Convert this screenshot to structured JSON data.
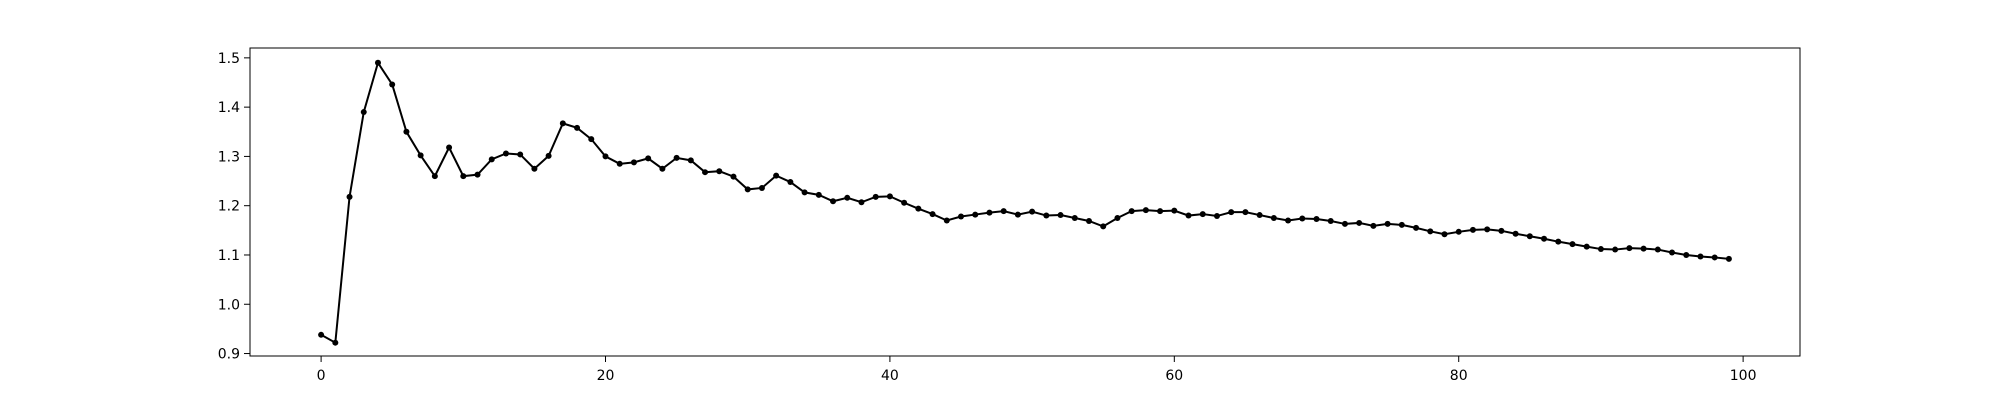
{
  "chart_data": {
    "type": "line",
    "title": "",
    "xlabel": "",
    "ylabel": "",
    "xlim": [
      -5,
      104
    ],
    "ylim": [
      0.895,
      1.52
    ],
    "xticks": [
      0,
      20,
      40,
      60,
      80,
      100
    ],
    "yticks": [
      0.9,
      1.0,
      1.1,
      1.2,
      1.3,
      1.4,
      1.5
    ],
    "xtick_labels": [
      "0",
      "20",
      "40",
      "60",
      "80",
      "100"
    ],
    "ytick_labels": [
      "0.9",
      "1.0",
      "1.1",
      "1.2",
      "1.3",
      "1.4",
      "1.5"
    ],
    "grid": false,
    "legend": "none",
    "colors": {
      "line": "#000000",
      "axes": "#000000",
      "background": "#ffffff"
    },
    "series": [
      {
        "x": [
          0,
          1,
          2,
          3,
          4,
          5,
          6,
          7,
          8,
          9,
          10,
          11,
          12,
          13,
          14,
          15,
          16,
          17,
          18,
          19,
          20,
          21,
          22,
          23,
          24,
          25,
          26,
          27,
          28,
          29,
          30,
          31,
          32,
          33,
          34,
          35,
          36,
          37,
          38,
          39,
          40,
          41,
          42,
          43,
          44,
          45,
          46,
          47,
          48,
          49,
          50,
          51,
          52,
          53,
          54,
          55,
          56,
          57,
          58,
          59,
          60,
          61,
          62,
          63,
          64,
          65,
          66,
          67,
          68,
          69,
          70,
          71,
          72,
          73,
          74,
          75,
          76,
          77,
          78,
          79,
          80,
          81,
          82,
          83,
          84,
          85,
          86,
          87,
          88,
          89,
          90,
          91,
          92,
          93,
          94,
          95,
          96,
          97,
          98,
          99
        ],
        "values": [
          0.938,
          0.922,
          1.218,
          1.39,
          1.49,
          1.446,
          1.35,
          1.302,
          1.26,
          1.318,
          1.26,
          1.263,
          1.294,
          1.306,
          1.304,
          1.275,
          1.301,
          1.367,
          1.358,
          1.335,
          1.3,
          1.285,
          1.288,
          1.296,
          1.275,
          1.297,
          1.292,
          1.268,
          1.27,
          1.259,
          1.233,
          1.236,
          1.261,
          1.248,
          1.227,
          1.222,
          1.209,
          1.216,
          1.207,
          1.218,
          1.219,
          1.206,
          1.194,
          1.183,
          1.17,
          1.178,
          1.182,
          1.186,
          1.189,
          1.182,
          1.188,
          1.18,
          1.181,
          1.175,
          1.169,
          1.158,
          1.175,
          1.189,
          1.191,
          1.189,
          1.19,
          1.18,
          1.183,
          1.179,
          1.187,
          1.187,
          1.181,
          1.175,
          1.17,
          1.174,
          1.173,
          1.169,
          1.163,
          1.165,
          1.159,
          1.163,
          1.161,
          1.155,
          1.148,
          1.142,
          1.147,
          1.151,
          1.152,
          1.149,
          1.143,
          1.138,
          1.133,
          1.127,
          1.122,
          1.117,
          1.112,
          1.111,
          1.114,
          1.113,
          1.111,
          1.105,
          1.1,
          1.097,
          1.095,
          1.092
        ]
      }
    ]
  }
}
